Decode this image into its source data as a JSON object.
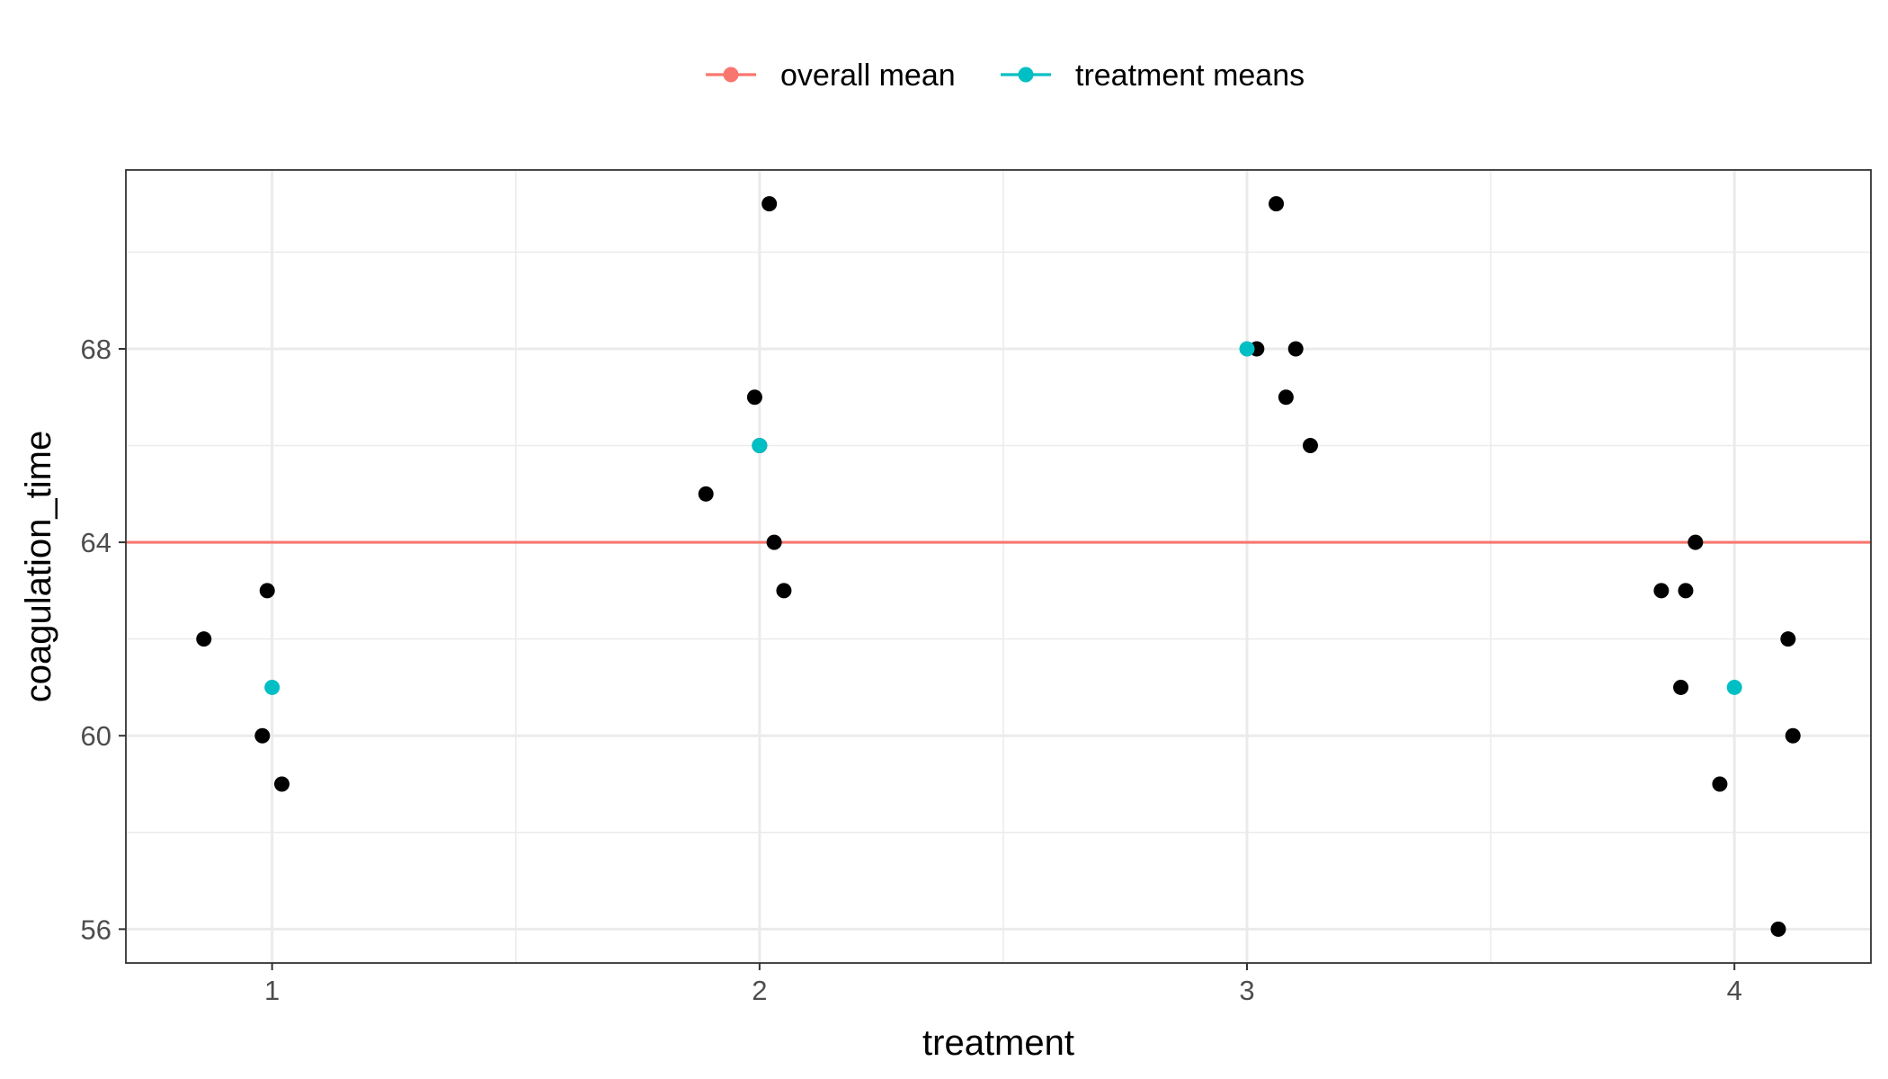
{
  "chart_data": {
    "type": "scatter",
    "title": "",
    "xlabel": "treatment",
    "ylabel": "coagulation_time",
    "xlim": [
      0.7,
      4.28
    ],
    "ylim": [
      55.3,
      71.7
    ],
    "x_ticks": [
      "1",
      "2",
      "3",
      "4"
    ],
    "y_ticks": [
      "56",
      "60",
      "64",
      "68"
    ],
    "grid": true,
    "legend_position": "top",
    "legend": [
      {
        "name": "overall mean",
        "color": "#F8766D"
      },
      {
        "name": "treatment means",
        "color": "#00BFC4"
      }
    ],
    "overall_mean": 64,
    "treatment_means": [
      {
        "x": 1,
        "y": 61
      },
      {
        "x": 2,
        "y": 66
      },
      {
        "x": 3,
        "y": 68
      },
      {
        "x": 4,
        "y": 61
      }
    ],
    "observations": [
      {
        "x": 0.86,
        "y": 62
      },
      {
        "x": 0.99,
        "y": 63
      },
      {
        "x": 0.98,
        "y": 60
      },
      {
        "x": 1.02,
        "y": 59
      },
      {
        "x": 1.89,
        "y": 65
      },
      {
        "x": 1.99,
        "y": 67
      },
      {
        "x": 2.0,
        "y": 66
      },
      {
        "x": 2.02,
        "y": 71
      },
      {
        "x": 2.03,
        "y": 64
      },
      {
        "x": 2.05,
        "y": 63
      },
      {
        "x": 3.02,
        "y": 68
      },
      {
        "x": 3.06,
        "y": 71
      },
      {
        "x": 3.08,
        "y": 67
      },
      {
        "x": 3.1,
        "y": 68
      },
      {
        "x": 3.13,
        "y": 66
      },
      {
        "x": 3.85,
        "y": 63
      },
      {
        "x": 3.89,
        "y": 61
      },
      {
        "x": 3.9,
        "y": 63
      },
      {
        "x": 3.92,
        "y": 64
      },
      {
        "x": 3.97,
        "y": 59
      },
      {
        "x": 4.09,
        "y": 56
      },
      {
        "x": 4.11,
        "y": 62
      },
      {
        "x": 4.12,
        "y": 60
      }
    ],
    "colors": {
      "observation": "#000000",
      "grid_major": "#EBEBEB",
      "panel_border": "#333333"
    }
  }
}
